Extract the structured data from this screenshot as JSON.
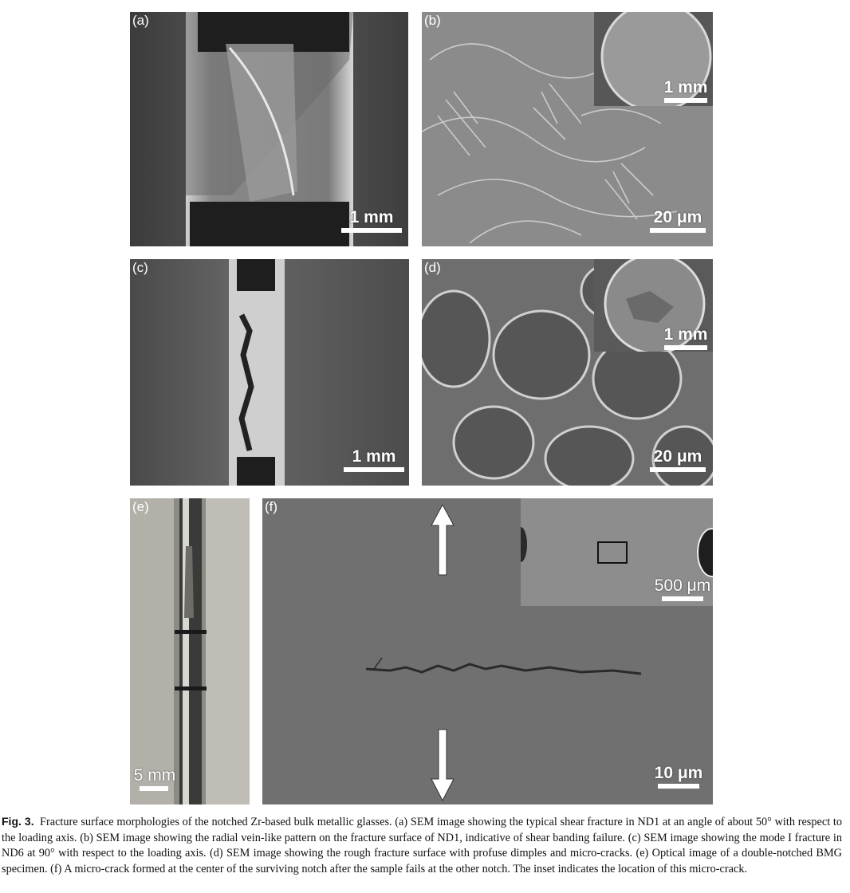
{
  "figure": {
    "panels": [
      {
        "label": "(a)",
        "scale": "1 mm"
      },
      {
        "label": "(b)",
        "scale": "20 μm",
        "inset_scale": "1 mm"
      },
      {
        "label": "(c)",
        "scale": "1 mm"
      },
      {
        "label": "(d)",
        "scale": "20 μm",
        "inset_scale": "1 mm"
      },
      {
        "label": "(e)",
        "scale": "5 mm"
      },
      {
        "label": "(f)",
        "scale": "10 μm",
        "inset_scale": "500 μm"
      }
    ],
    "caption_label": "Fig. 3.",
    "caption_text": "Fracture surface morphologies of the notched Zr-based bulk metallic glasses. (a) SEM image showing the typical shear fracture in ND1 at an angle of about 50° with respect to the loading axis. (b) SEM image showing the radial vein-like pattern on the fracture surface of ND1, indicative of shear banding failure. (c) SEM image showing the mode I fracture in ND6 at 90° with respect to the loading axis. (d) SEM image showing the rough fracture surface with profuse dimples and micro-cracks. (e) Optical image of a double-notched BMG specimen. (f) A micro-crack formed at the center of the surviving notch after the sample fails at the other notch. The inset indicates the location of this micro-crack."
  }
}
